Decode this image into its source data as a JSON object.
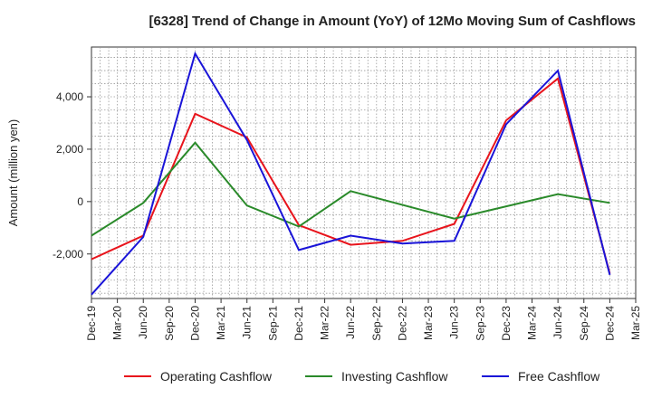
{
  "chart_data": {
    "type": "line",
    "title": "[6328]  Trend of Change in Amount (YoY) of 12Mo Moving Sum of Cashflows",
    "ylabel": "Amount (million yen)",
    "xlabel": "",
    "ylim": [
      -3700,
      5900
    ],
    "yticks": [
      -2000,
      0,
      2000,
      4000
    ],
    "ytick_labels": [
      "-2,000",
      "0",
      "2,000",
      "4,000"
    ],
    "x_labels": [
      "Dec-19",
      "Mar-20",
      "Jun-20",
      "Sep-20",
      "Dec-20",
      "Mar-21",
      "Jun-21",
      "Sep-21",
      "Dec-21",
      "Mar-22",
      "Jun-22",
      "Sep-22",
      "Dec-22",
      "Mar-23",
      "Jun-23",
      "Sep-23",
      "Dec-23",
      "Mar-24",
      "Jun-24",
      "Sep-24",
      "Dec-24",
      "Mar-25"
    ],
    "grid": true,
    "legend_position": "bottom",
    "series": [
      {
        "name": "Operating Cashflow",
        "color": "#e8141c",
        "points": [
          [
            0,
            -2200
          ],
          [
            2,
            -1300
          ],
          [
            4,
            3350
          ],
          [
            6,
            2450
          ],
          [
            8,
            -900
          ],
          [
            10,
            -1650
          ],
          [
            12,
            -1500
          ],
          [
            14,
            -850
          ],
          [
            16,
            3100
          ],
          [
            18,
            4700
          ],
          [
            20,
            -2750
          ]
        ]
      },
      {
        "name": "Investing Cashflow",
        "color": "#2a8a2a",
        "points": [
          [
            0,
            -1300
          ],
          [
            2,
            -50
          ],
          [
            4,
            2250
          ],
          [
            6,
            -150
          ],
          [
            8,
            -950
          ],
          [
            10,
            400
          ],
          [
            14,
            -650
          ],
          [
            18,
            280
          ],
          [
            20,
            -50
          ]
        ]
      },
      {
        "name": "Free Cashflow",
        "color": "#1a14d8",
        "points": [
          [
            0,
            -3550
          ],
          [
            2,
            -1350
          ],
          [
            4,
            5650
          ],
          [
            6,
            2350
          ],
          [
            8,
            -1850
          ],
          [
            10,
            -1300
          ],
          [
            12,
            -1600
          ],
          [
            14,
            -1500
          ],
          [
            16,
            2950
          ],
          [
            18,
            5000
          ],
          [
            20,
            -2800
          ]
        ]
      }
    ]
  }
}
